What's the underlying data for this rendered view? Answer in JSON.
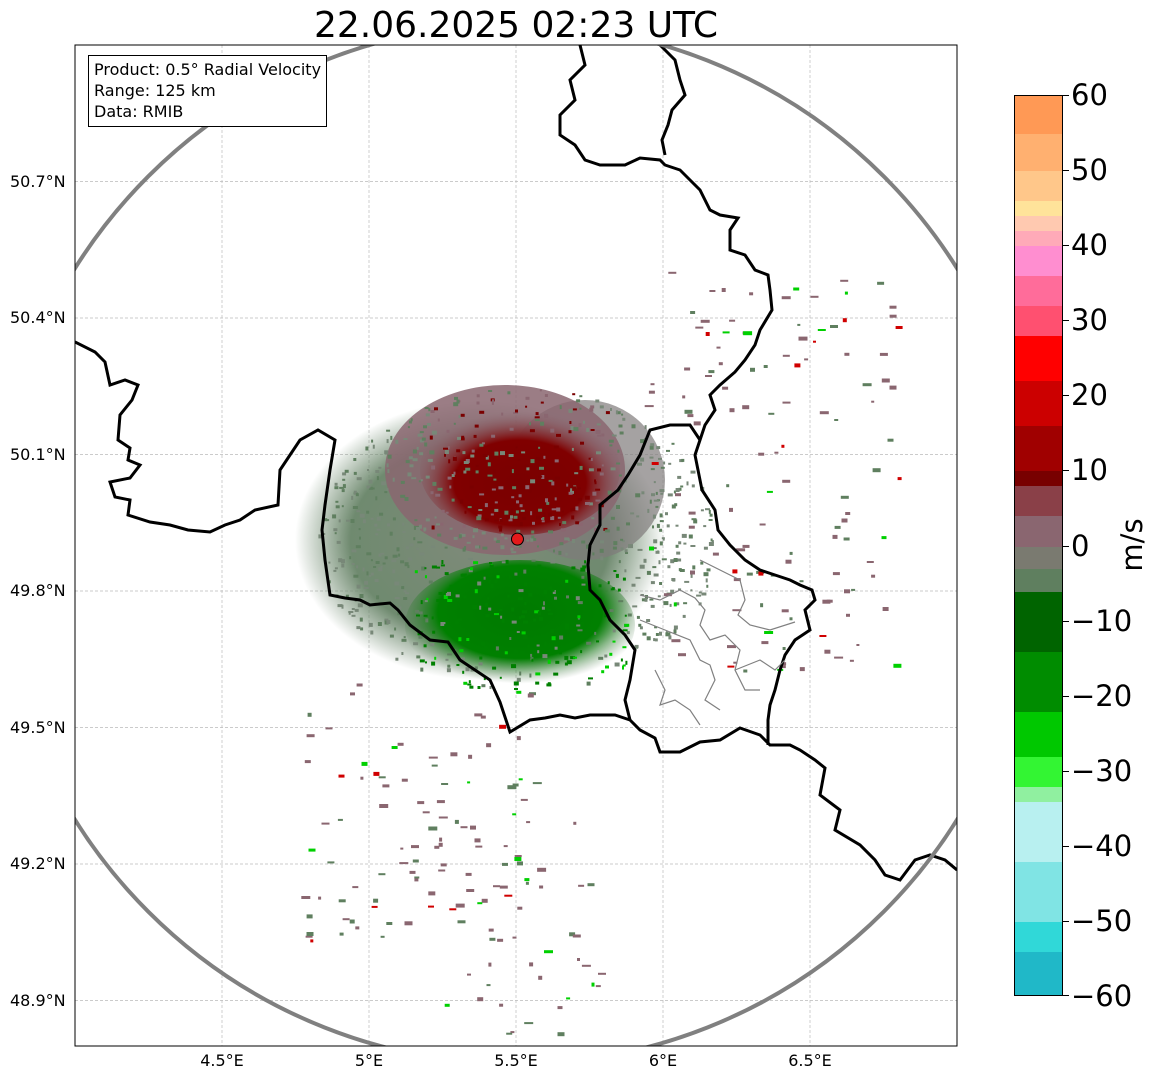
{
  "title": "22.06.2025 02:23 UTC",
  "info_box": {
    "product": "Product: 0.5° Radial Velocity",
    "range": "Range: 125 km",
    "source": "Data: RMIB"
  },
  "map": {
    "extent": {
      "lon": [
        4.0,
        7.0
      ],
      "lat": [
        48.8,
        51.0
      ]
    },
    "lat_ticks": [
      {
        "value": 50.7,
        "label": "50.7°N"
      },
      {
        "value": 50.4,
        "label": "50.4°N"
      },
      {
        "value": 50.1,
        "label": "50.1°N"
      },
      {
        "value": 49.8,
        "label": "49.8°N"
      },
      {
        "value": 49.5,
        "label": "49.5°N"
      },
      {
        "value": 49.2,
        "label": "49.2°N"
      },
      {
        "value": 48.9,
        "label": "48.9°N"
      }
    ],
    "lon_ticks": [
      {
        "value": 4.5,
        "label": "4.5°E"
      },
      {
        "value": 5.0,
        "label": "5°E"
      },
      {
        "value": 5.5,
        "label": "5.5°E"
      },
      {
        "value": 6.0,
        "label": "6°E"
      },
      {
        "value": 6.5,
        "label": "6.5°E"
      }
    ],
    "radar_site": {
      "lon": 5.505,
      "lat": 49.914,
      "color": "#e41a1c"
    },
    "range_ring_color": "#808080",
    "border_color": "#000000",
    "admin_border_color": "#808080",
    "gridline_color": "#bbbbbb"
  },
  "colorbar": {
    "unit": "m/s",
    "min": -60,
    "max": 60,
    "ticks": [
      60,
      50,
      40,
      30,
      20,
      10,
      0,
      -10,
      -20,
      -30,
      -40,
      -50,
      -60
    ],
    "tick_labels": [
      "60",
      "50",
      "40",
      "30",
      "20",
      "10",
      "0",
      "−10",
      "−20",
      "−30",
      "−40",
      "−50",
      "−60"
    ],
    "stops": [
      {
        "value": 60,
        "color": "#ff9955"
      },
      {
        "value": 55,
        "color": "#ffb070"
      },
      {
        "value": 50,
        "color": "#ffc78a"
      },
      {
        "value": 46,
        "color": "#ffe39a"
      },
      {
        "value": 44,
        "color": "#ffc9b0"
      },
      {
        "value": 42,
        "color": "#ffaab8"
      },
      {
        "value": 40,
        "color": "#ff8ed0"
      },
      {
        "value": 36,
        "color": "#ff6c9a"
      },
      {
        "value": 32,
        "color": "#ff5070"
      },
      {
        "value": 28,
        "color": "#ff0000"
      },
      {
        "value": 22,
        "color": "#cc0000"
      },
      {
        "value": 16,
        "color": "#a00000"
      },
      {
        "value": 10,
        "color": "#780000"
      },
      {
        "value": 8,
        "color": "#8a4048"
      },
      {
        "value": 4,
        "color": "#8a6670"
      },
      {
        "value": 0,
        "color": "#7a7a70"
      },
      {
        "value": -3,
        "color": "#5f7f5f"
      },
      {
        "value": -6,
        "color": "#006400"
      },
      {
        "value": -14,
        "color": "#008c00"
      },
      {
        "value": -22,
        "color": "#00c800"
      },
      {
        "value": -28,
        "color": "#33f533"
      },
      {
        "value": -32,
        "color": "#90f0a0"
      },
      {
        "value": -34,
        "color": "#b8f0f0"
      },
      {
        "value": -42,
        "color": "#80e4e4"
      },
      {
        "value": -50,
        "color": "#30d8d8"
      },
      {
        "value": -54,
        "color": "#20b8c8"
      },
      {
        "value": -60,
        "color": "#1f77b4"
      }
    ]
  },
  "velocity_colors": {
    "receding_strong": "#7a0000",
    "receding_weak": "#8a6670",
    "near_zero": "#788878",
    "approaching_weak": "#5f7f5f",
    "approaching_strong": "#008000",
    "approaching_bright": "#00d000",
    "speckle_red": "#d00000"
  }
}
